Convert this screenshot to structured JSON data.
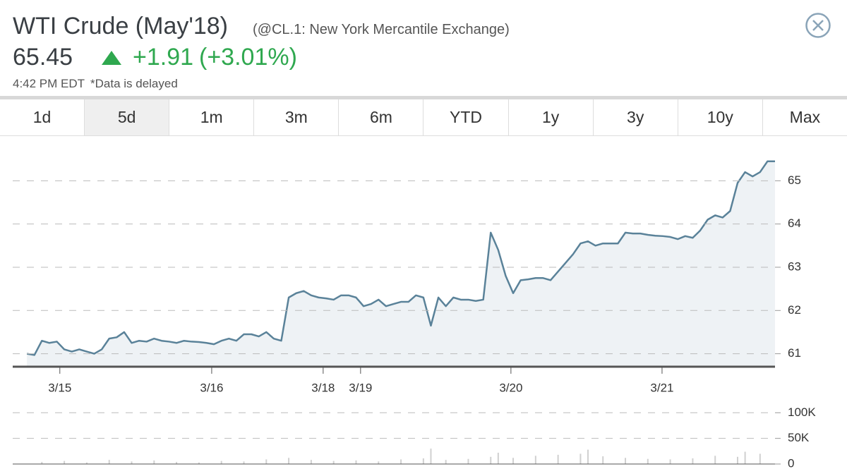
{
  "header": {
    "title": "WTI Crude (May'18)",
    "subtitle": "(@CL.1: New York Mercantile Exchange)",
    "price": "65.45",
    "change": "+1.91",
    "change_pct": "(+3.01%)",
    "time": "4:42 PM EDT",
    "delay_note": "*Data is delayed"
  },
  "tabs": [
    "1d",
    "5d",
    "1m",
    "3m",
    "6m",
    "YTD",
    "1y",
    "3y",
    "10y",
    "Max"
  ],
  "active_tab": 1,
  "chart_data": [
    {
      "type": "line",
      "color": "#5a8299",
      "fill": "#eef2f5",
      "x": [
        0,
        1,
        2,
        3,
        4,
        5,
        6,
        7,
        8,
        9,
        10,
        11,
        12,
        13,
        14,
        15,
        16,
        17,
        18,
        19,
        20,
        21,
        22,
        23,
        24,
        25,
        26,
        27,
        28,
        29,
        30,
        31,
        32,
        33,
        34,
        35,
        36,
        37,
        38,
        39,
        40,
        41,
        42,
        43,
        44,
        45,
        46,
        47,
        48,
        49,
        50,
        51,
        52,
        53,
        54,
        55,
        56,
        57,
        58,
        59,
        60,
        61,
        62,
        63,
        64,
        65,
        66,
        67,
        68,
        69,
        70,
        71,
        72,
        73,
        74,
        75,
        76,
        77,
        78,
        79,
        80,
        81,
        82,
        83,
        84,
        85,
        86,
        87,
        88,
        89,
        90,
        91,
        92,
        93,
        94,
        95,
        96,
        97,
        98,
        99,
        100
      ],
      "values": [
        61.0,
        60.97,
        61.3,
        61.25,
        61.28,
        61.1,
        61.05,
        61.1,
        61.05,
        61.0,
        61.1,
        61.35,
        61.38,
        61.5,
        61.25,
        61.3,
        61.28,
        61.35,
        61.3,
        61.28,
        61.25,
        61.3,
        61.28,
        61.27,
        61.25,
        61.22,
        61.3,
        61.35,
        61.3,
        61.45,
        61.45,
        61.4,
        61.5,
        61.35,
        61.3,
        62.3,
        62.4,
        62.45,
        62.35,
        62.3,
        62.28,
        62.25,
        62.35,
        62.35,
        62.3,
        62.1,
        62.15,
        62.25,
        62.1,
        62.15,
        62.2,
        62.2,
        62.35,
        62.3,
        61.65,
        62.3,
        62.1,
        62.3,
        62.25,
        62.25,
        62.22,
        62.25,
        63.8,
        63.4,
        62.8,
        62.4,
        62.7,
        62.72,
        62.75,
        62.75,
        62.7,
        62.9,
        63.1,
        63.3,
        63.55,
        63.6,
        63.5,
        63.55,
        63.55,
        63.55,
        63.8,
        63.78,
        63.78,
        63.75,
        63.73,
        63.72,
        63.7,
        63.65,
        63.72,
        63.68,
        63.85,
        64.1,
        64.2,
        64.15,
        64.3,
        64.95,
        65.2,
        65.1,
        65.2,
        65.45,
        65.45
      ],
      "xlim": [
        -1.9,
        100
      ],
      "xticks": [
        {
          "value": 4.4,
          "label": "3/15"
        },
        {
          "value": 24.7,
          "label": "3/16"
        },
        {
          "value": 39.6,
          "label": "3/18"
        },
        {
          "value": 44.6,
          "label": "3/19"
        },
        {
          "value": 64.7,
          "label": "3/20"
        },
        {
          "value": 84.9,
          "label": "3/21"
        }
      ],
      "ylim": [
        60.7,
        66
      ],
      "yticks": [
        61,
        62,
        63,
        64,
        65
      ],
      "grid": true
    },
    {
      "type": "bar",
      "color": "#d0d0d0",
      "x": [
        2,
        5,
        8,
        11,
        14,
        17,
        20,
        23,
        26,
        29,
        32,
        35,
        38,
        41,
        44,
        47,
        50,
        53,
        54,
        56,
        59,
        62,
        63,
        65,
        68,
        71,
        74,
        75,
        77,
        80,
        83,
        86,
        89,
        92,
        95,
        96,
        98
      ],
      "values": [
        4000,
        6000,
        3000,
        8000,
        5000,
        7000,
        4000,
        3000,
        6000,
        5000,
        9000,
        12000,
        8000,
        6000,
        7000,
        5000,
        9000,
        11000,
        30000,
        8000,
        10000,
        14000,
        22000,
        12000,
        16000,
        18000,
        20000,
        28000,
        15000,
        12000,
        10000,
        9000,
        11000,
        16000,
        14000,
        24000,
        20000
      ],
      "xlim": [
        -1.9,
        100
      ],
      "ylim": [
        0,
        110000
      ],
      "yticks": [
        0,
        {
          "value": 50000,
          "label": "50K"
        },
        {
          "value": 100000,
          "label": "100K"
        }
      ],
      "grid": true
    }
  ]
}
